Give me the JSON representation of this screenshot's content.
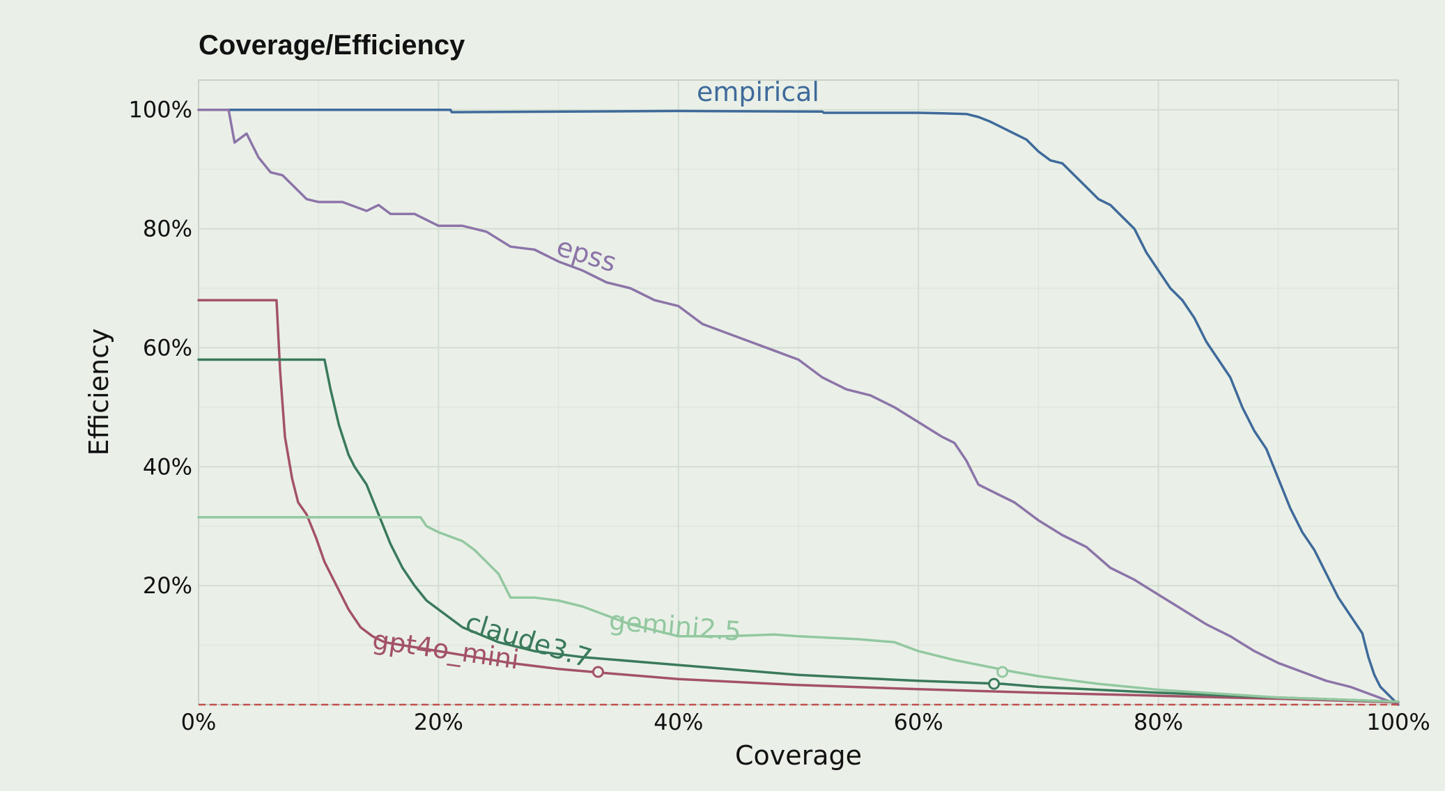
{
  "chart_data": {
    "type": "line",
    "title": "Coverage/Efficiency",
    "xlabel": "Coverage",
    "ylabel": "Efficiency",
    "xlim": [
      0,
      100
    ],
    "ylim": [
      0,
      105
    ],
    "x_ticks": [
      {
        "value": 0,
        "label": "0%"
      },
      {
        "value": 20,
        "label": "20%"
      },
      {
        "value": 40,
        "label": "40%"
      },
      {
        "value": 60,
        "label": "60%"
      },
      {
        "value": 80,
        "label": "80%"
      },
      {
        "value": 100,
        "label": "100%"
      }
    ],
    "y_ticks": [
      {
        "value": 20,
        "label": "20%"
      },
      {
        "value": 40,
        "label": "40%"
      },
      {
        "value": 60,
        "label": "60%"
      },
      {
        "value": 80,
        "label": "80%"
      },
      {
        "value": 100,
        "label": "100%"
      }
    ],
    "grid": true,
    "series": [
      {
        "name": "empirical",
        "color": "#3f6a9a",
        "label": "empirical",
        "points": [
          [
            0,
            100
          ],
          [
            21,
            100
          ],
          [
            21.1,
            99.6
          ],
          [
            40,
            99.8
          ],
          [
            52,
            99.7
          ],
          [
            52.1,
            99.5
          ],
          [
            60,
            99.5
          ],
          [
            62,
            99.4
          ],
          [
            64,
            99.3
          ],
          [
            65,
            98.8
          ],
          [
            66,
            98
          ],
          [
            67,
            97
          ],
          [
            68,
            96
          ],
          [
            69,
            95
          ],
          [
            70,
            93
          ],
          [
            71,
            91.5
          ],
          [
            72,
            91
          ],
          [
            73,
            89
          ],
          [
            74,
            87
          ],
          [
            75,
            85
          ],
          [
            76,
            84
          ],
          [
            77,
            82
          ],
          [
            78,
            80
          ],
          [
            79,
            76
          ],
          [
            80,
            73
          ],
          [
            81,
            70
          ],
          [
            82,
            68
          ],
          [
            83,
            65
          ],
          [
            84,
            61
          ],
          [
            85,
            58
          ],
          [
            86,
            55
          ],
          [
            87,
            50
          ],
          [
            88,
            46
          ],
          [
            89,
            43
          ],
          [
            90,
            38
          ],
          [
            91,
            33
          ],
          [
            92,
            29
          ],
          [
            93,
            26
          ],
          [
            94,
            22
          ],
          [
            95,
            18
          ],
          [
            96,
            15
          ],
          [
            97,
            12
          ],
          [
            97.5,
            8
          ],
          [
            98,
            5
          ],
          [
            98.5,
            3
          ],
          [
            99,
            2
          ],
          [
            99.5,
            1
          ],
          [
            100,
            0
          ]
        ]
      },
      {
        "name": "epss",
        "color": "#8c74a8",
        "label": "epss",
        "points": [
          [
            0,
            100
          ],
          [
            2.5,
            100
          ],
          [
            3,
            94.5
          ],
          [
            4,
            96
          ],
          [
            5,
            92
          ],
          [
            6,
            89.5
          ],
          [
            7,
            89
          ],
          [
            8,
            87
          ],
          [
            9,
            85
          ],
          [
            10,
            84.5
          ],
          [
            12,
            84.5
          ],
          [
            14,
            83
          ],
          [
            15,
            84
          ],
          [
            16,
            82.5
          ],
          [
            18,
            82.5
          ],
          [
            19,
            81.5
          ],
          [
            20,
            80.5
          ],
          [
            22,
            80.5
          ],
          [
            24,
            79.5
          ],
          [
            26,
            77
          ],
          [
            28,
            76.5
          ],
          [
            30,
            74.5
          ],
          [
            32,
            73
          ],
          [
            34,
            71
          ],
          [
            36,
            70
          ],
          [
            38,
            68
          ],
          [
            40,
            67
          ],
          [
            42,
            64
          ],
          [
            44,
            62.5
          ],
          [
            46,
            61
          ],
          [
            48,
            59.5
          ],
          [
            50,
            58
          ],
          [
            52,
            55
          ],
          [
            54,
            53
          ],
          [
            56,
            52
          ],
          [
            58,
            50
          ],
          [
            60,
            47.5
          ],
          [
            62,
            45
          ],
          [
            63,
            44
          ],
          [
            64,
            41
          ],
          [
            65,
            37
          ],
          [
            67,
            35
          ],
          [
            68,
            34
          ],
          [
            70,
            31
          ],
          [
            72,
            28.5
          ],
          [
            74,
            26.5
          ],
          [
            76,
            23
          ],
          [
            78,
            21
          ],
          [
            80,
            18.5
          ],
          [
            82,
            16
          ],
          [
            84,
            13.5
          ],
          [
            86,
            11.5
          ],
          [
            88,
            9
          ],
          [
            90,
            7
          ],
          [
            92,
            5.5
          ],
          [
            94,
            4
          ],
          [
            96,
            3
          ],
          [
            98,
            1.5
          ],
          [
            100,
            0
          ]
        ]
      },
      {
        "name": "gpt4o_mini",
        "color": "#a35268",
        "label": "gpt4o_mini",
        "points": [
          [
            0,
            68
          ],
          [
            6.5,
            68
          ],
          [
            6.8,
            56
          ],
          [
            7.2,
            45
          ],
          [
            7.8,
            38
          ],
          [
            8.3,
            34
          ],
          [
            9,
            32
          ],
          [
            9.8,
            28
          ],
          [
            10.5,
            24
          ],
          [
            11.5,
            20
          ],
          [
            12.5,
            16
          ],
          [
            13.5,
            13
          ],
          [
            14.5,
            11.5
          ],
          [
            15.5,
            10.5
          ],
          [
            17,
            10
          ],
          [
            20,
            9
          ],
          [
            23,
            8
          ],
          [
            26,
            7
          ],
          [
            30,
            6
          ],
          [
            34,
            5.3
          ],
          [
            40,
            4.3
          ],
          [
            50,
            3.3
          ],
          [
            60,
            2.6
          ],
          [
            70,
            2
          ],
          [
            80,
            1.5
          ],
          [
            90,
            1
          ],
          [
            100,
            0.4
          ]
        ]
      },
      {
        "name": "claude3.7",
        "color": "#3a7a5a",
        "label": "claude3.7",
        "points": [
          [
            0,
            58
          ],
          [
            10.5,
            58
          ],
          [
            11,
            53
          ],
          [
            11.7,
            47
          ],
          [
            12.5,
            42
          ],
          [
            13,
            40
          ],
          [
            14,
            37
          ],
          [
            15,
            32
          ],
          [
            16,
            27
          ],
          [
            17,
            23
          ],
          [
            18,
            20
          ],
          [
            19,
            17.5
          ],
          [
            20,
            16
          ],
          [
            22,
            13
          ],
          [
            25,
            10.5
          ],
          [
            28,
            9
          ],
          [
            32,
            8
          ],
          [
            38,
            7
          ],
          [
            44,
            6
          ],
          [
            50,
            5
          ],
          [
            55,
            4.5
          ],
          [
            60,
            4
          ],
          [
            67,
            3.5
          ],
          [
            70,
            3
          ],
          [
            80,
            2
          ],
          [
            90,
            1.2
          ],
          [
            100,
            0.5
          ]
        ]
      },
      {
        "name": "gemini2.5",
        "color": "#93c8a0",
        "label": "gemini2.5",
        "points": [
          [
            0,
            31.5
          ],
          [
            18.5,
            31.5
          ],
          [
            19,
            30
          ],
          [
            20,
            29
          ],
          [
            22,
            27.5
          ],
          [
            23,
            26
          ],
          [
            24,
            24
          ],
          [
            25,
            22
          ],
          [
            26,
            18
          ],
          [
            28,
            18
          ],
          [
            30,
            17.5
          ],
          [
            32,
            16.5
          ],
          [
            34,
            15
          ],
          [
            36,
            13.5
          ],
          [
            38,
            12.5
          ],
          [
            40,
            11.5
          ],
          [
            44,
            11.5
          ],
          [
            48,
            11.8
          ],
          [
            50,
            11.5
          ],
          [
            55,
            11
          ],
          [
            58,
            10.5
          ],
          [
            60,
            9
          ],
          [
            63,
            7.5
          ],
          [
            66,
            6.3
          ],
          [
            68,
            5.5
          ],
          [
            70,
            4.8
          ],
          [
            75,
            3.5
          ],
          [
            80,
            2.5
          ],
          [
            90,
            1.2
          ],
          [
            100,
            0.5
          ]
        ]
      }
    ],
    "markers": [
      {
        "series": "gpt4o_mini",
        "x": 33.3,
        "y": 5.5
      },
      {
        "series": "claude3.7",
        "x": 66.3,
        "y": 3.5
      },
      {
        "series": "gemini2.5",
        "x": 67,
        "y": 5.5
      }
    ],
    "baseline": {
      "y": 0,
      "color": "#c0504d"
    }
  }
}
